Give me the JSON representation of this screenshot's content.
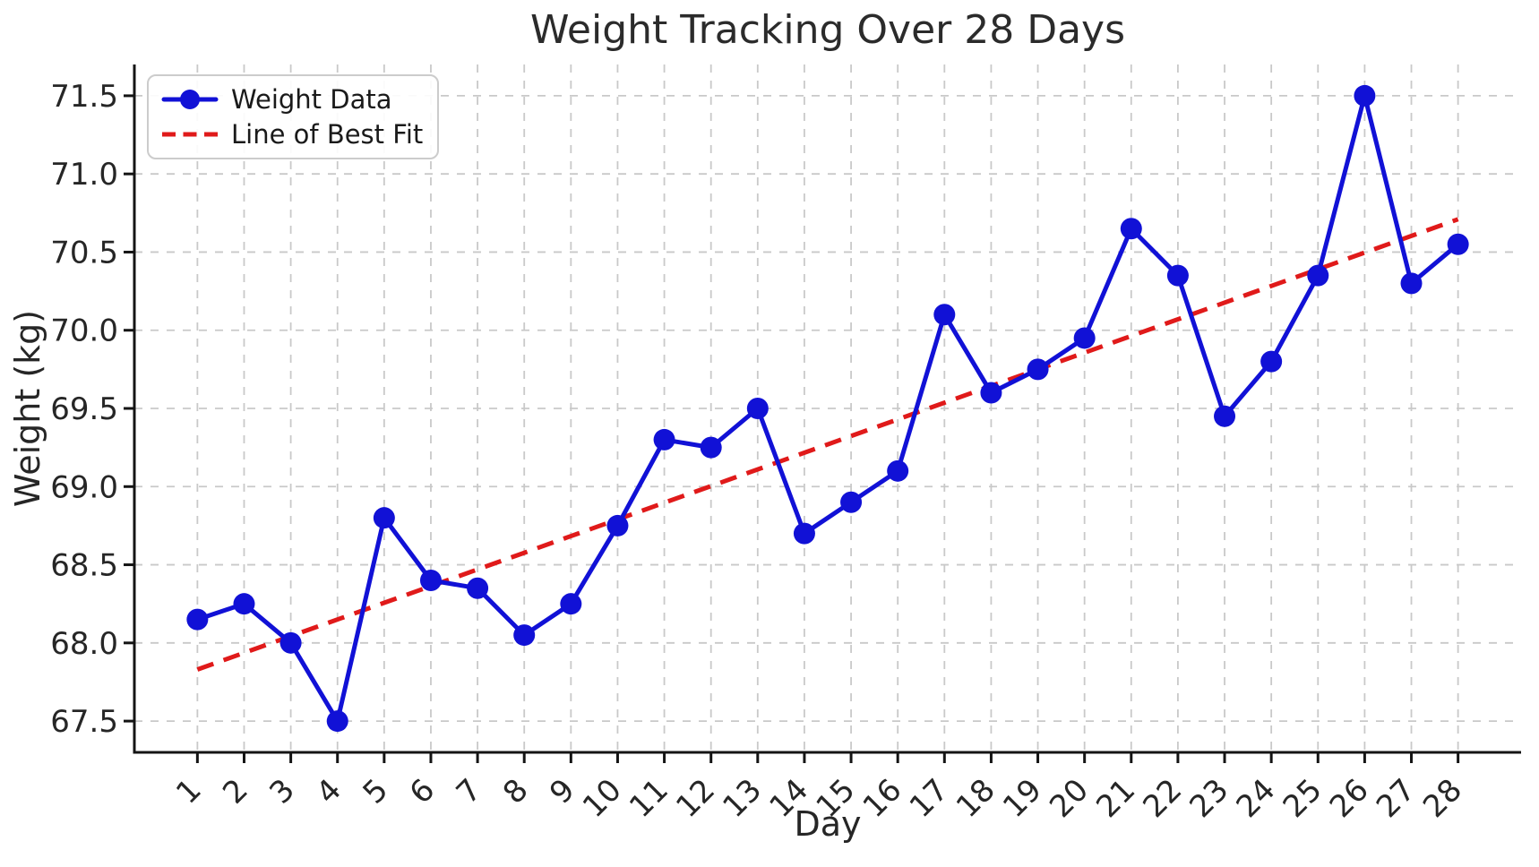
{
  "chart_data": {
    "type": "line",
    "title": "Weight Tracking Over 28 Days",
    "xlabel": "Day",
    "ylabel": "Weight (kg)",
    "categories": [
      1,
      2,
      3,
      4,
      5,
      6,
      7,
      8,
      9,
      10,
      11,
      12,
      13,
      14,
      15,
      16,
      17,
      18,
      19,
      20,
      21,
      22,
      23,
      24,
      25,
      26,
      27,
      28
    ],
    "series": [
      {
        "name": "Weight Data",
        "color": "#1111d6",
        "line_style": "solid",
        "marker": "circle",
        "values": [
          68.15,
          68.25,
          68.0,
          67.5,
          68.8,
          68.4,
          68.35,
          68.05,
          68.25,
          68.75,
          69.3,
          69.25,
          69.5,
          68.7,
          68.9,
          69.1,
          70.1,
          69.6,
          69.75,
          69.95,
          70.65,
          70.35,
          69.45,
          69.8,
          70.35,
          71.5,
          70.3,
          70.55
        ]
      },
      {
        "name": "Line of Best Fit",
        "color": "#e01a1a",
        "line_style": "dashed",
        "fit_slope_kg_per_day": 0.107,
        "fit_value_day1": 67.83,
        "fit_value_day28": 70.71
      }
    ],
    "xlim": [
      -0.35,
      29.35
    ],
    "ylim": [
      67.3,
      71.7
    ],
    "y_ticks": [
      67.5,
      68.0,
      68.5,
      69.0,
      69.5,
      70.0,
      70.5,
      71.0,
      71.5
    ],
    "y_tick_labels": [
      "67.5",
      "68.0",
      "68.5",
      "69.0",
      "69.5",
      "70.0",
      "70.5",
      "71.0",
      "71.5"
    ],
    "x_tick_labels": [
      "1",
      "2",
      "3",
      "4",
      "5",
      "6",
      "7",
      "8",
      "9",
      "10",
      "11",
      "12",
      "13",
      "14",
      "15",
      "16",
      "17",
      "18",
      "19",
      "20",
      "21",
      "22",
      "23",
      "24",
      "25",
      "26",
      "27",
      "28"
    ],
    "grid": true,
    "legend_position": "upper left",
    "style": {
      "grid_color": "#c9c9c9",
      "axis_color": "#141414",
      "tick_text_color": "#262626",
      "background_color": "#ffffff"
    }
  }
}
